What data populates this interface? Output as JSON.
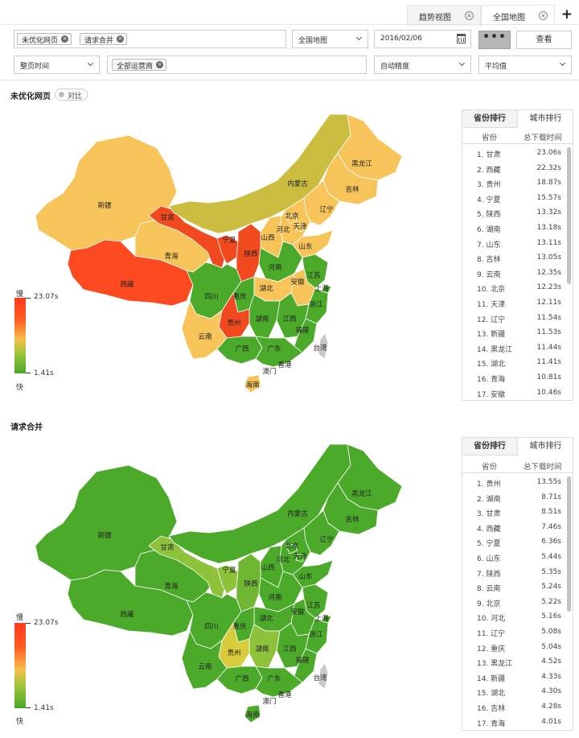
{
  "tabs": [
    {
      "label": "趋势视图",
      "active": false
    },
    {
      "label": "全国地图",
      "active": true
    }
  ],
  "filters": {
    "chips_row1": [
      "未优化网页",
      "请求合并"
    ],
    "map_select": "全国地图",
    "date": "2016/02/06",
    "more_label": "•••",
    "view_label": "查看",
    "time_select": "整页时间",
    "operator_chip": "全部运营商",
    "precision_select": "自动精度",
    "stat_select": "平均值"
  },
  "section1": {
    "title": "未优化网页",
    "compare_label": "对比"
  },
  "section2": {
    "title": "请求合并"
  },
  "legend": {
    "slow": "慢",
    "fast": "快",
    "max": "23.07s",
    "min": "1.41s"
  },
  "rank_tabs": [
    "省份排行",
    "城市排行"
  ],
  "rank_headers": {
    "province": "省份",
    "time": "总下载时间"
  },
  "rank1": [
    {
      "name": "1. 甘肃",
      "value": "23.06s"
    },
    {
      "name": "2. 西藏",
      "value": "22.32s"
    },
    {
      "name": "3. 贵州",
      "value": "18.87s"
    },
    {
      "name": "4. 宁夏",
      "value": "15.57s"
    },
    {
      "name": "5. 陕西",
      "value": "13.32s"
    },
    {
      "name": "6. 湖南",
      "value": "13.18s"
    },
    {
      "name": "7. 山东",
      "value": "13.11s"
    },
    {
      "name": "8. 吉林",
      "value": "13.05s"
    },
    {
      "name": "9. 云南",
      "value": "12.35s"
    },
    {
      "name": "10. 北京",
      "value": "12.23s"
    },
    {
      "name": "11. 天津",
      "value": "12.11s"
    },
    {
      "name": "12. 辽宁",
      "value": "11.54s"
    },
    {
      "name": "13. 新疆",
      "value": "11.53s"
    },
    {
      "name": "14. 黑龙江",
      "value": "11.44s"
    },
    {
      "name": "15. 湖北",
      "value": "11.41s"
    },
    {
      "name": "16. 青海",
      "value": "10.81s"
    },
    {
      "name": "17. 安徽",
      "value": "10.46s"
    }
  ],
  "rank2": [
    {
      "name": "1. 贵州",
      "value": "13.55s"
    },
    {
      "name": "2. 湖南",
      "value": "8.71s"
    },
    {
      "name": "3. 甘肃",
      "value": "8.51s"
    },
    {
      "name": "4. 西藏",
      "value": "7.46s"
    },
    {
      "name": "5. 宁夏",
      "value": "6.36s"
    },
    {
      "name": "6. 山东",
      "value": "5.44s"
    },
    {
      "name": "7. 陕西",
      "value": "5.35s"
    },
    {
      "name": "8. 云南",
      "value": "5.24s"
    },
    {
      "name": "9. 北京",
      "value": "5.22s"
    },
    {
      "name": "10. 河北",
      "value": "5.16s"
    },
    {
      "name": "11. 辽宁",
      "value": "5.08s"
    },
    {
      "name": "12. 重庆",
      "value": "5.04s"
    },
    {
      "name": "13. 黑龙江",
      "value": "4.52s"
    },
    {
      "name": "14. 新疆",
      "value": "4.33s"
    },
    {
      "name": "15. 湖北",
      "value": "4.30s"
    },
    {
      "name": "16. 吉林",
      "value": "4.28s"
    },
    {
      "name": "17. 青海",
      "value": "4.01s"
    }
  ],
  "map1_labels": [
    "新疆",
    "西藏",
    "青海",
    "甘肃",
    "内蒙古",
    "黑龙江",
    "吉林",
    "辽宁",
    "北京",
    "天津",
    "河北",
    "山西",
    "山东",
    "宁夏",
    "陕西",
    "河南",
    "江苏",
    "安徽",
    "上海",
    "四川",
    "重庆",
    "湖北",
    "浙江",
    "湖南",
    "江西",
    "福建",
    "贵州",
    "云南",
    "广西",
    "广东",
    "台湾",
    "香港",
    "澳门",
    "海南"
  ],
  "map2_labels": [
    "新疆",
    "西藏",
    "青海",
    "甘肃",
    "内蒙古",
    "黑龙江",
    "吉林",
    "辽宁",
    "北京",
    "天津",
    "河北",
    "山西",
    "山东",
    "宁夏",
    "陕西",
    "河南",
    "江苏",
    "安徽",
    "上海",
    "四川",
    "重庆",
    "湖北",
    "浙江",
    "湖南",
    "江西",
    "福建",
    "贵州",
    "云南",
    "广西",
    "广东",
    "台湾",
    "香港",
    "澳门",
    "海南"
  ],
  "colors": {
    "slow": "#ff4a1f",
    "mid": "#f5c452",
    "fast": "#4caa2a",
    "olive": "#c8bc3c",
    "map2_light": "#8ec23a",
    "map2_yellow": "#d8cc3a"
  }
}
